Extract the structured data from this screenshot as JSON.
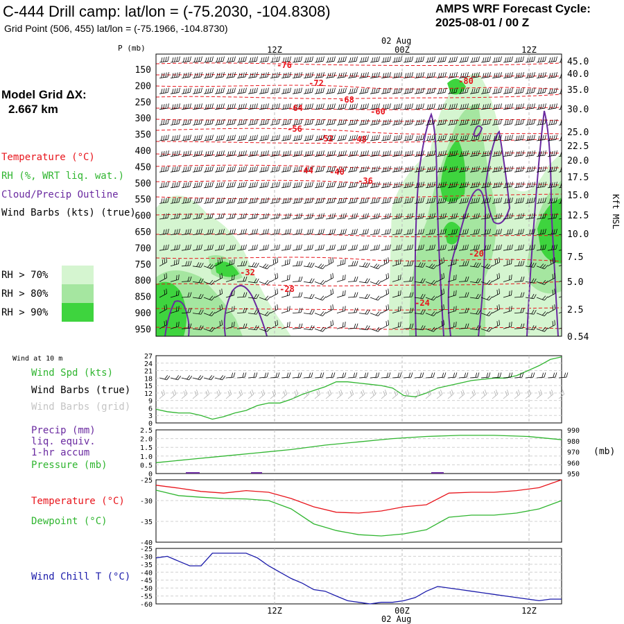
{
  "header": {
    "station": "C-444 Drill camp:  lat/lon = (-75.2030, -104.8308)",
    "gridpoint": "Grid Point (506, 455) lat/lon = (-75.1966, -104.8730)",
    "cycle_title": "AMPS WRF Forecast Cycle:",
    "cycle_value": "2025-08-01 / 00  Z"
  },
  "model_grid": {
    "label": "Model Grid ΔX:",
    "value": "2.667 km"
  },
  "time_axis": {
    "top_date": "02 Aug",
    "bottom_date": "02 Aug",
    "ticks": [
      "12Z",
      "00Z",
      "12Z"
    ]
  },
  "colors": {
    "temperature": "#e8141b",
    "rh": "#2fb52f",
    "cloud": "#6a2aa0",
    "wind": "#000000",
    "wind_grid": "#b0b0b0",
    "windchill": "#1a1aaa",
    "rh70": "#d5f5d0",
    "rh80": "#a5e6a0",
    "rh90": "#3ed43e"
  },
  "legend_main": {
    "temperature": "Temperature (°C)",
    "rh": "RH (%, WRT liq. wat.)",
    "cloud": "Cloud/Precip Outline",
    "wind": "Wind Barbs (kts) (true)",
    "rh70": "RH > 70%",
    "rh80": "RH > 80%",
    "rh90": "RH > 90%"
  },
  "legend_wind": {
    "title": "Wind at 10 m",
    "spd": "Wind Spd (kts)",
    "barbs_true": "Wind Barbs (true)",
    "barbs_grid": "Wind Barbs (grid)"
  },
  "legend_precip": {
    "l1": "Precip (mm)",
    "l2": "liq. equiv.",
    "l3": "1-hr accum",
    "l4": "Pressure (mb)",
    "unit": "(mb)"
  },
  "legend_temp": {
    "t": "Temperature (°C)",
    "d": "Dewpoint (°C)"
  },
  "legend_chill": {
    "c": "Wind Chill T (°C)"
  },
  "main_axes": {
    "p_label": "P (mb)",
    "pressures": [
      "150",
      "200",
      "250",
      "300",
      "350",
      "400",
      "450",
      "500",
      "550",
      "600",
      "650",
      "700",
      "750",
      "800",
      "850",
      "900",
      "950"
    ],
    "heights": [
      "45.0",
      "40.0",
      "35.0",
      "30.0",
      "25.0",
      "22.5",
      "20.0",
      "17.5",
      "15.0",
      "12.5",
      "10.0",
      "7.5",
      "5.0",
      "2.5",
      "0.54"
    ],
    "height_unit": "Kft MSL"
  },
  "chart_data": [
    {
      "type": "line",
      "name": "time-height cross-section",
      "isotherm_labels": [
        "-76",
        "-72",
        "-68",
        "-64",
        "-60",
        "-56",
        "-52",
        "-48",
        "-44",
        "-40",
        "-36",
        "-32",
        "-28",
        "-24",
        "-20",
        "-80"
      ]
    },
    {
      "type": "line",
      "name": "wind at 10 m",
      "yticks": [
        "27",
        "24",
        "21",
        "18",
        "15",
        "12",
        "9",
        "6",
        "3",
        "0"
      ],
      "ylim": [
        0,
        27
      ],
      "x": [
        0,
        1,
        2,
        3,
        4,
        5,
        6,
        7,
        8,
        9,
        10,
        11,
        12,
        13,
        14,
        15,
        16,
        17,
        18,
        19,
        20,
        21,
        22,
        23,
        24,
        25,
        26,
        27,
        28,
        29,
        30,
        31,
        32,
        33,
        34,
        35,
        36
      ],
      "series": [
        {
          "name": "Wind Spd (kts)",
          "values": [
            5.5,
            4.5,
            4,
            4,
            3,
            1.5,
            2.5,
            4,
            5,
            7,
            8,
            8,
            9.5,
            11.5,
            13,
            14.5,
            16.5,
            16.5,
            16,
            15.5,
            15,
            14,
            11,
            10.5,
            12,
            14,
            15,
            16,
            17,
            17.5,
            18,
            18,
            19,
            21,
            23,
            25.5,
            26.5
          ]
        }
      ]
    },
    {
      "type": "line",
      "name": "precip and pressure",
      "yticks_left": [
        "2.5",
        "2.0",
        "1.5",
        "1.0",
        "0.5",
        "0"
      ],
      "yticks_right": [
        "990",
        "980",
        "970",
        "960",
        "950"
      ],
      "ylim_pressure": [
        950,
        990
      ],
      "x": [
        0,
        3,
        6,
        9,
        12,
        15,
        18,
        21,
        24,
        27,
        30,
        33,
        36
      ],
      "series": [
        {
          "name": "Pressure (mb)",
          "values": [
            960,
            963,
            966,
            969,
            972,
            976,
            979,
            982,
            984,
            985,
            985,
            984,
            981
          ]
        }
      ]
    },
    {
      "type": "line",
      "name": "temperature and dewpoint",
      "yticks": [
        "-25",
        "-30",
        "-35",
        "-40"
      ],
      "ylim": [
        -40,
        -25
      ],
      "x": [
        0,
        2,
        4,
        6,
        8,
        10,
        12,
        14,
        16,
        18,
        20,
        22,
        24,
        26,
        28,
        30,
        32,
        34,
        36
      ],
      "series": [
        {
          "name": "Temperature (°C)",
          "values": [
            -26.3,
            -27,
            -27.8,
            -28.2,
            -27.6,
            -28,
            -29.5,
            -31.5,
            -32.8,
            -33,
            -32.5,
            -31.5,
            -31,
            -28.2,
            -28,
            -28,
            -27.6,
            -26.9,
            -25
          ]
        },
        {
          "name": "Dewpoint (°C)",
          "values": [
            -27.5,
            -28.8,
            -29.2,
            -29.5,
            -29.6,
            -30,
            -32,
            -35.6,
            -37.2,
            -38.2,
            -38.5,
            -38,
            -37,
            -34,
            -33.5,
            -33.5,
            -33,
            -32,
            -30
          ]
        }
      ]
    },
    {
      "type": "line",
      "name": "wind chill",
      "yticks": [
        "-25",
        "-30",
        "-35",
        "-40",
        "-45",
        "-50",
        "-55",
        "-60"
      ],
      "ylim": [
        -60,
        -25
      ],
      "x": [
        0,
        1,
        2,
        3,
        4,
        5,
        6,
        7,
        8,
        9,
        10,
        11,
        12,
        13,
        14,
        15,
        16,
        17,
        18,
        19,
        20,
        21,
        22,
        23,
        24,
        25,
        26,
        27,
        28,
        29,
        30,
        31,
        32,
        33,
        34,
        35,
        36
      ],
      "series": [
        {
          "name": "Wind Chill T (°C)",
          "values": [
            -31,
            -30,
            -33,
            -36,
            -36,
            -28,
            -28,
            -28,
            -28,
            -31,
            -36,
            -40,
            -44,
            -47,
            -51,
            -52,
            -55,
            -58,
            -59,
            -60,
            -59,
            -59,
            -58,
            -56,
            -52,
            -49,
            -50,
            -51,
            -52,
            -53,
            -54,
            -55,
            -56,
            -57,
            -58,
            -57,
            -57
          ]
        }
      ]
    }
  ]
}
